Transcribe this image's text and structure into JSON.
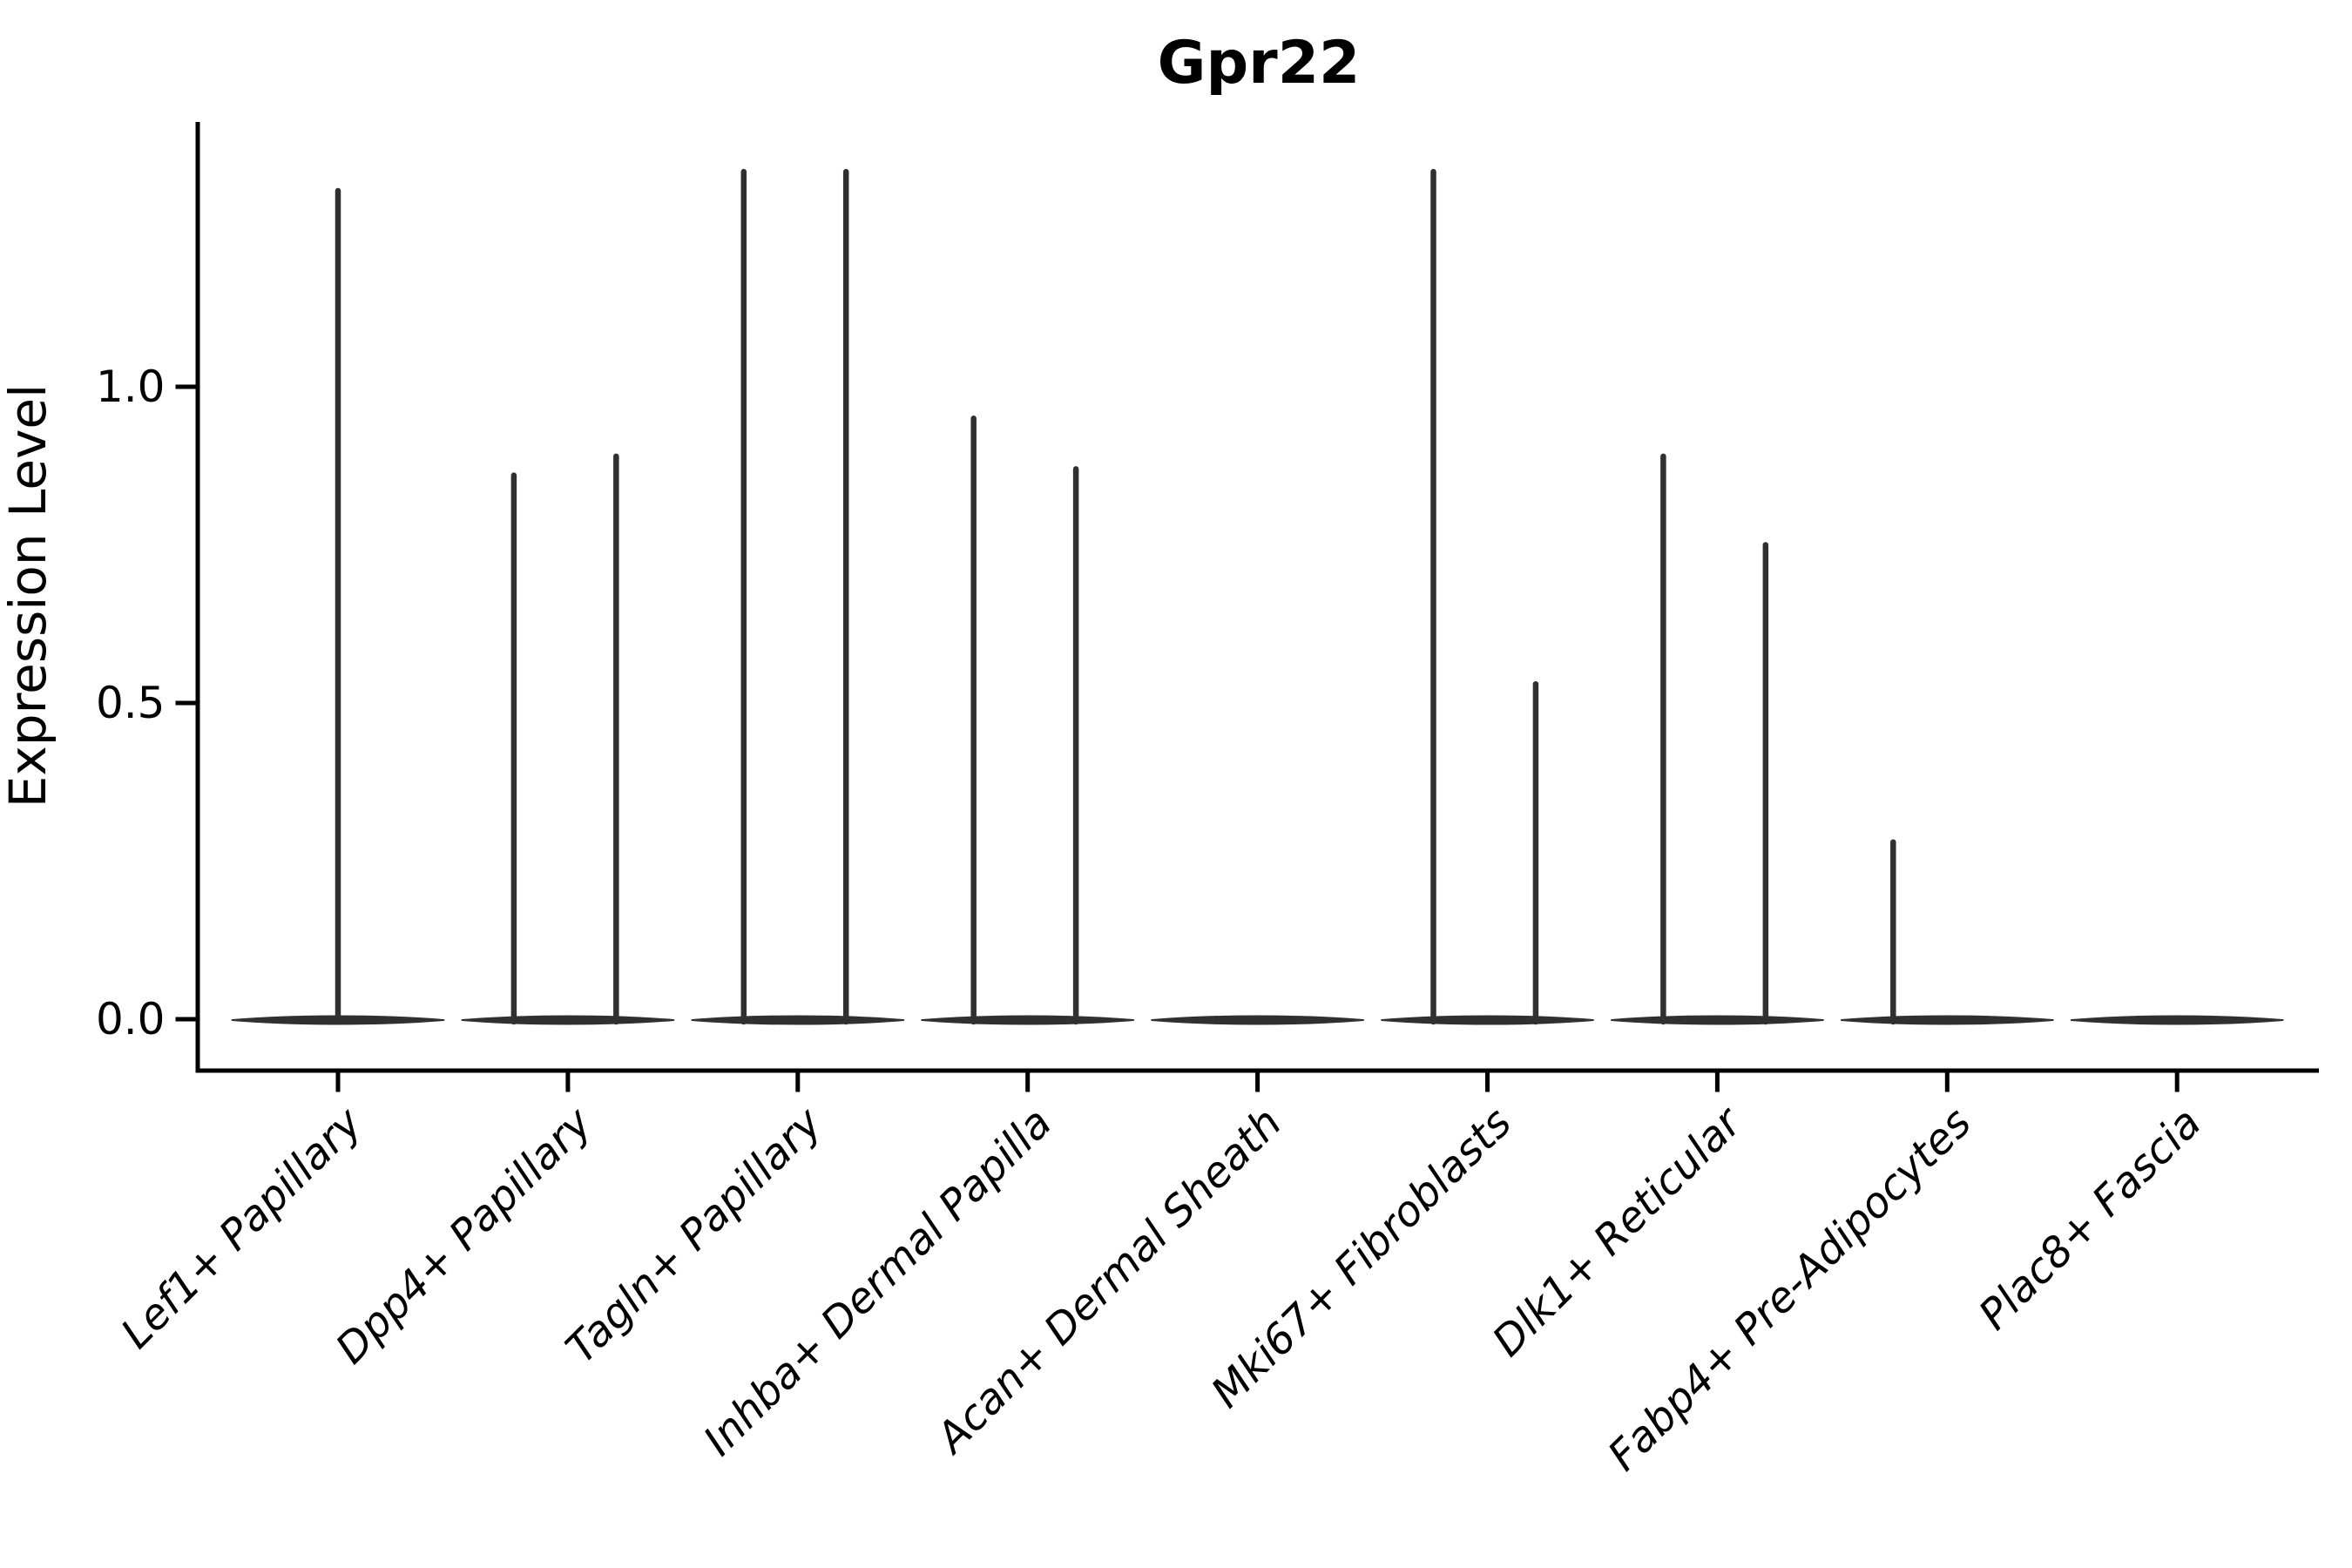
{
  "figure": {
    "background": "#ffffff",
    "axis_color": "#000000",
    "violin_color": "#303030"
  },
  "chart_data": {
    "type": "violin",
    "title": "Gpr22",
    "xlabel": "",
    "ylabel": "Expression Level",
    "grid": false,
    "legend": "none",
    "ylim": [
      -0.08,
      1.42
    ],
    "yticks": [
      {
        "label": "0.0",
        "value": 0.0
      },
      {
        "label": "0.5",
        "value": 0.5
      },
      {
        "label": "1.0",
        "value": 1.0
      }
    ],
    "categories": [
      "Lef1+ Papillary",
      "Dpp4+ Papillary",
      "Tagln+ Papillary",
      "Inhba+ Dermal Papilla",
      "Acan+ Dermal Sheath",
      "Mki67+ Fibroblasts",
      "Dlk1+ Reticular",
      "Fabp4+ Pre-Adipocytes",
      "Plac8+ Fascia"
    ],
    "violin_base_halfwidth": 0.46,
    "violins": [
      {
        "category": "Lef1+ Papillary",
        "base_at_zero": true,
        "spikes": [
          {
            "pos": 0.0,
            "peak": 1.31
          }
        ]
      },
      {
        "category": "Dpp4+ Papillary",
        "base_at_zero": true,
        "spikes": [
          {
            "pos": -0.235,
            "peak": 0.86
          },
          {
            "pos": 0.21,
            "peak": 0.89
          }
        ]
      },
      {
        "category": "Tagln+ Papillary",
        "base_at_zero": true,
        "spikes": [
          {
            "pos": -0.235,
            "peak": 1.34
          },
          {
            "pos": 0.21,
            "peak": 1.34
          }
        ]
      },
      {
        "category": "Inhba+ Dermal Papilla",
        "base_at_zero": true,
        "spikes": [
          {
            "pos": -0.235,
            "peak": 0.95
          },
          {
            "pos": 0.21,
            "peak": 0.87
          }
        ]
      },
      {
        "category": "Acan+ Dermal Sheath",
        "base_at_zero": true,
        "spikes": []
      },
      {
        "category": "Mki67+ Fibroblasts",
        "base_at_zero": true,
        "spikes": [
          {
            "pos": -0.235,
            "peak": 1.34
          },
          {
            "pos": 0.21,
            "peak": 0.53
          }
        ]
      },
      {
        "category": "Dlk1+ Reticular",
        "base_at_zero": true,
        "spikes": [
          {
            "pos": -0.235,
            "peak": 0.89
          },
          {
            "pos": 0.21,
            "peak": 0.75
          }
        ]
      },
      {
        "category": "Fabp4+ Pre-Adipocytes",
        "base_at_zero": true,
        "spikes": [
          {
            "pos": -0.235,
            "peak": 0.28
          }
        ]
      },
      {
        "category": "Plac8+ Fascia",
        "base_at_zero": true,
        "spikes": []
      }
    ]
  }
}
